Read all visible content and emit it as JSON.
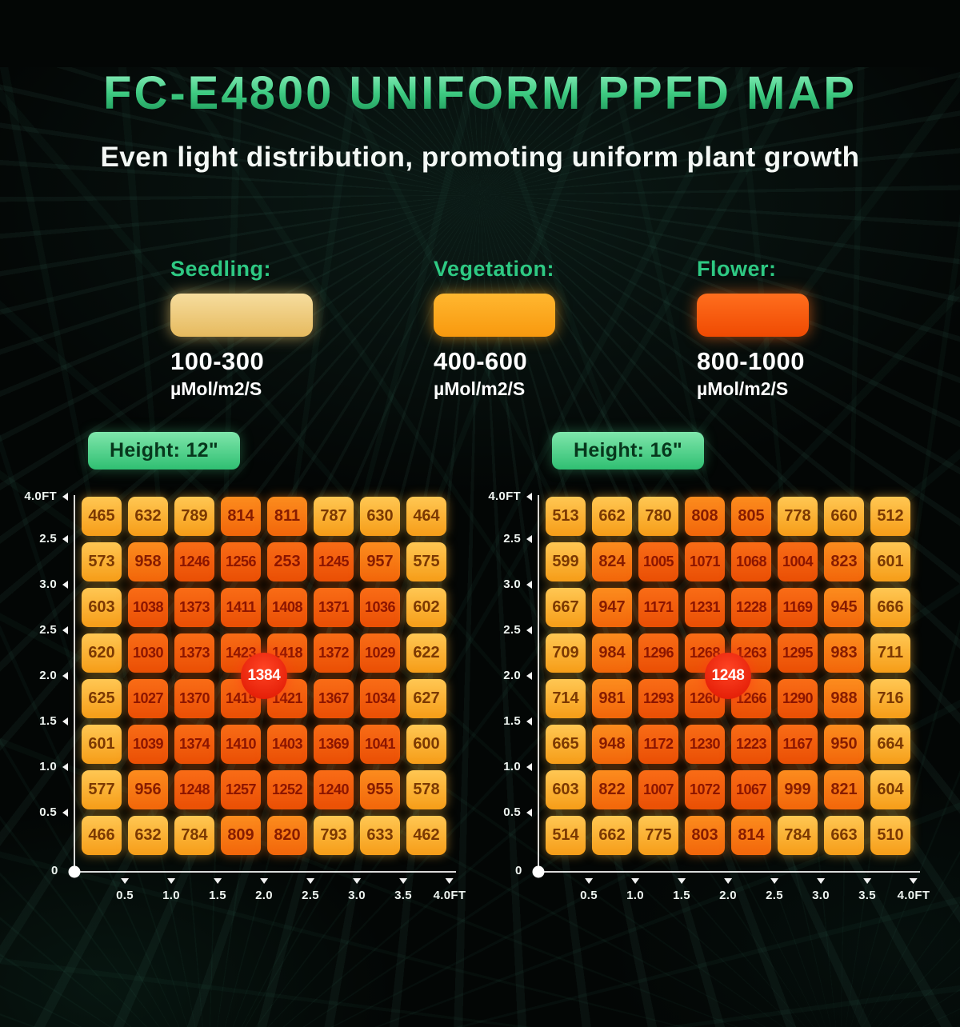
{
  "header": {
    "title": "FC-E4800 UNIFORM PPFD MAP",
    "subtitle": "Even light distribution, promoting uniform plant growth"
  },
  "legend": {
    "items": [
      {
        "label": "Seedling:",
        "range": "100-300",
        "unit": "µMol/m2/S",
        "color_top": "#f6dd9e",
        "color_bottom": "#e6ba5e",
        "glow": "rgba(240,205,115,0.65)"
      },
      {
        "label": "Vegetation:",
        "range": "400-600",
        "unit": "µMol/m2/S",
        "color_top": "#ffb730",
        "color_bottom": "#f8990e",
        "glow": "rgba(255,170,40,0.65)"
      },
      {
        "label": "Flower:",
        "range": "800-1000",
        "unit": "µMol/m2/S",
        "color_top": "#ff6e1e",
        "color_bottom": "#ef4a02",
        "glow": "rgba(255,110,30,0.65)"
      }
    ]
  },
  "chart_data": [
    {
      "type": "heatmap",
      "title": "Height: 12\"",
      "center_badge": "1384",
      "origin_label": "0",
      "y_ticks": [
        "4.0FT",
        "2.5",
        "3.0",
        "2.5",
        "2.0",
        "1.5",
        "1.0",
        "0.5"
      ],
      "x_ticks": [
        "0.5",
        "1.0",
        "1.5",
        "2.0",
        "2.5",
        "3.0",
        "3.5",
        "4.0FT"
      ],
      "unit": "µMol/m2/S (PPFD)",
      "values": [
        [
          465,
          632,
          789,
          814,
          811,
          787,
          630,
          464
        ],
        [
          573,
          958,
          1246,
          1256,
          253,
          1245,
          957,
          575
        ],
        [
          603,
          1038,
          1373,
          1411,
          1408,
          1371,
          1036,
          602
        ],
        [
          620,
          1030,
          1373,
          1423,
          1418,
          1372,
          1029,
          622
        ],
        [
          625,
          1027,
          1370,
          1415,
          1421,
          1367,
          1034,
          627
        ],
        [
          601,
          1039,
          1374,
          1410,
          1403,
          1369,
          1041,
          600
        ],
        [
          577,
          956,
          1248,
          1257,
          1252,
          1240,
          955,
          578
        ],
        [
          466,
          632,
          784,
          809,
          820,
          793,
          633,
          462
        ]
      ],
      "color_override": {
        "1,4": "deep"
      }
    },
    {
      "type": "heatmap",
      "title": "Height: 16\"",
      "center_badge": "1248",
      "origin_label": "0",
      "y_ticks": [
        "4.0FT",
        "2.5",
        "3.0",
        "2.5",
        "2.0",
        "1.5",
        "1.0",
        "0.5"
      ],
      "x_ticks": [
        "0.5",
        "1.0",
        "1.5",
        "2.0",
        "2.5",
        "3.0",
        "3.5",
        "4.0FT"
      ],
      "unit": "µMol/m2/S (PPFD)",
      "values": [
        [
          513,
          662,
          780,
          808,
          805,
          778,
          660,
          512
        ],
        [
          599,
          824,
          1005,
          1071,
          1068,
          1004,
          823,
          601
        ],
        [
          667,
          947,
          1171,
          1231,
          1228,
          1169,
          945,
          666
        ],
        [
          709,
          984,
          1296,
          1268,
          1263,
          1295,
          983,
          711
        ],
        [
          714,
          981,
          1293,
          1260,
          1266,
          1290,
          988,
          716
        ],
        [
          665,
          948,
          1172,
          1230,
          1223,
          1167,
          950,
          664
        ],
        [
          603,
          822,
          1007,
          1072,
          1067,
          999,
          821,
          604
        ],
        [
          514,
          662,
          775,
          803,
          814,
          784,
          663,
          510
        ]
      ],
      "color_override": {}
    }
  ],
  "colors": {
    "accent_green": "#2ec983",
    "amber_top": "#ffc753",
    "amber_bottom": "#f69d18",
    "text_amber": "#7b3903",
    "orange_top": "#fc8c1e",
    "orange_bottom": "#f2660a",
    "text_orange": "#871c00",
    "deep_top": "#f96c16",
    "deep_bottom": "#ea4f05",
    "text_deep": "#8c1500",
    "center_badge_bg": "#dd1500",
    "badge_top": "#7fe6ab",
    "badge_bottom": "#2fbf72",
    "badge_text": "#07371c"
  }
}
